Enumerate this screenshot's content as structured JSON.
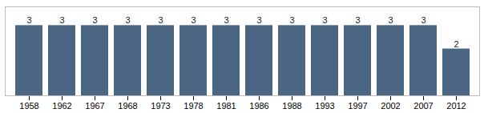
{
  "chart_data": {
    "type": "bar",
    "categories": [
      "1958",
      "1962",
      "1967",
      "1968",
      "1973",
      "1978",
      "1981",
      "1986",
      "1988",
      "1993",
      "1997",
      "2002",
      "2007",
      "2012"
    ],
    "values": [
      3,
      3,
      3,
      3,
      3,
      3,
      3,
      3,
      3,
      3,
      3,
      3,
      3,
      2
    ],
    "color": "#4a6682",
    "ylim": [
      0,
      3.8
    ],
    "data_labels": true,
    "tick_labels": "x",
    "grid": false
  }
}
